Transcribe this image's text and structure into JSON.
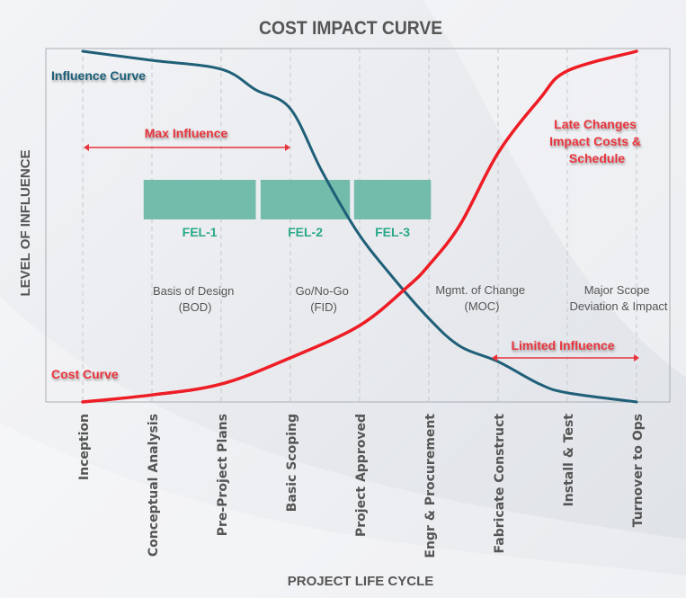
{
  "title": "COST IMPACT CURVE",
  "y_axis_label": "LEVEL OF INFLUENCE",
  "x_axis_label": "PROJECT LIFE CYCLE",
  "stages": [
    "Inception",
    "Conceptual Analysis",
    "Pre-Project Plans",
    "Basic Scoping",
    "Project Approved",
    "Engr & Procurement",
    "Fabricate Construct",
    "Install & Test",
    "Turnover to Ops"
  ],
  "colors": {
    "influence": "#1f5f78",
    "cost": "#ee1c24",
    "fel": "#6db8a6",
    "fel_text": "#2aa98a",
    "annotation": "#e8343c",
    "text": "#555555"
  },
  "chart_data": {
    "type": "line",
    "y_range": [
      0,
      100
    ],
    "series": [
      {
        "name": "Influence Curve",
        "points": [
          [
            0,
            100
          ],
          [
            1,
            97.4
          ],
          [
            2,
            94.9
          ],
          [
            2.5,
            89
          ],
          [
            3,
            83.6
          ],
          [
            3.45,
            66
          ],
          [
            3.95,
            49
          ],
          [
            4.4,
            37.4
          ],
          [
            5,
            23.8
          ],
          [
            5.45,
            15.9
          ],
          [
            6,
            11.5
          ],
          [
            6.6,
            5.1
          ],
          [
            7,
            2.6
          ],
          [
            8,
            0
          ]
        ]
      },
      {
        "name": "Cost Curve",
        "points": [
          [
            0,
            0
          ],
          [
            1,
            2
          ],
          [
            2,
            5.1
          ],
          [
            3,
            12.6
          ],
          [
            4,
            21.8
          ],
          [
            4.7,
            33
          ],
          [
            5,
            39
          ],
          [
            5.45,
            50.5
          ],
          [
            6,
            71
          ],
          [
            6.6,
            86.4
          ],
          [
            7,
            94.4
          ],
          [
            8,
            100
          ]
        ]
      }
    ]
  },
  "phases": [
    {
      "label": "FEL-1",
      "start": 0.88,
      "end": 2.5
    },
    {
      "label": "FEL-2",
      "start": 2.57,
      "end": 3.86
    },
    {
      "label": "FEL-3",
      "start": 3.92,
      "end": 5.03
    }
  ],
  "annotations": {
    "max_influence": "Max Influence",
    "limited_influence": "Limited Influence",
    "late_changes": [
      "Late Changes",
      "Impact Costs &",
      "Schedule"
    ],
    "basis_of_design": [
      "Basis of Design",
      "(BOD)"
    ],
    "go_no_go": [
      "Go/No-Go",
      "(FID)"
    ],
    "mgmt_change": [
      "Mgmt. of Change",
      "(MOC)"
    ],
    "major_scope": [
      "Major Scope",
      "Deviation & Impact"
    ]
  }
}
